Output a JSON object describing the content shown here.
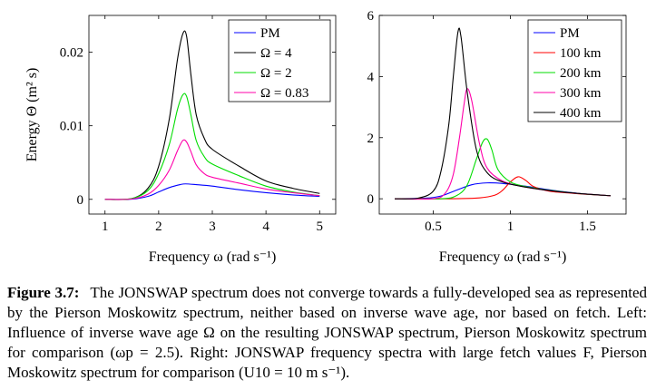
{
  "chart_data": [
    {
      "type": "line",
      "xlabel": "Frequency ω (rad s⁻¹)",
      "ylabel": "Energy Θ (m² s)",
      "xlim": [
        0.7,
        5.3
      ],
      "ylim": [
        -0.002,
        0.025
      ],
      "xticks": [
        1,
        2,
        3,
        4,
        5
      ],
      "yticks": [
        0,
        0.01,
        0.02
      ],
      "ytick_labels": [
        "0",
        "0.01",
        "0.02"
      ],
      "grid": false,
      "legend_position": "top-right",
      "series": [
        {
          "name": "PM",
          "color": "#0000ff",
          "x": [
            1.0,
            1.5,
            1.8,
            2.0,
            2.2,
            2.4,
            2.5,
            2.7,
            3.0,
            3.5,
            4.0,
            4.5,
            5.0
          ],
          "y": [
            0.0,
            2e-05,
            0.0004,
            0.001,
            0.0016,
            0.002,
            0.0021,
            0.002,
            0.0018,
            0.0013,
            0.0009,
            0.0006,
            0.0004
          ]
        },
        {
          "name": "Ω = 4",
          "color": "#000000",
          "x": [
            1.0,
            1.5,
            1.8,
            2.0,
            2.2,
            2.35,
            2.45,
            2.52,
            2.6,
            2.7,
            2.85,
            3.0,
            3.5,
            4.0,
            4.5,
            5.0
          ],
          "y": [
            0.0,
            0.0001,
            0.0015,
            0.0045,
            0.011,
            0.019,
            0.0225,
            0.0222,
            0.017,
            0.0115,
            0.0083,
            0.0068,
            0.0045,
            0.0025,
            0.0015,
            0.0008
          ]
        },
        {
          "name": "Ω = 2",
          "color": "#00dd00",
          "x": [
            1.0,
            1.5,
            1.8,
            2.0,
            2.2,
            2.35,
            2.45,
            2.52,
            2.6,
            2.7,
            2.85,
            3.0,
            3.5,
            4.0,
            4.5,
            5.0
          ],
          "y": [
            0.0,
            0.0001,
            0.0012,
            0.0035,
            0.0075,
            0.0122,
            0.0142,
            0.014,
            0.0115,
            0.008,
            0.0058,
            0.0048,
            0.0032,
            0.0018,
            0.001,
            0.0005
          ]
        },
        {
          "name": "Ω = 0.83",
          "color": "#ff00aa",
          "x": [
            1.0,
            1.5,
            1.8,
            2.0,
            2.2,
            2.35,
            2.45,
            2.52,
            2.6,
            2.7,
            2.85,
            3.0,
            3.5,
            4.0,
            4.5,
            5.0
          ],
          "y": [
            0.0,
            5e-05,
            0.0007,
            0.0019,
            0.004,
            0.0066,
            0.008,
            0.0078,
            0.0065,
            0.0047,
            0.0035,
            0.003,
            0.0022,
            0.0014,
            0.0009,
            0.0005
          ]
        }
      ]
    },
    {
      "type": "line",
      "xlabel": "Frequency ω (rad s⁻¹)",
      "ylabel": "",
      "xlim": [
        0.15,
        1.75
      ],
      "ylim": [
        -0.5,
        6
      ],
      "xticks": [
        0.5,
        1,
        1.5
      ],
      "yticks": [
        0,
        2,
        4,
        6
      ],
      "ytick_labels": [
        "0",
        "2",
        "4",
        "6"
      ],
      "grid": false,
      "legend_position": "top-right",
      "series": [
        {
          "name": "PM",
          "color": "#0000ff",
          "x": [
            0.25,
            0.45,
            0.55,
            0.65,
            0.75,
            0.85,
            0.95,
            1.1,
            1.3,
            1.5,
            1.65
          ],
          "y": [
            0.0,
            0.02,
            0.09,
            0.28,
            0.46,
            0.52,
            0.5,
            0.41,
            0.26,
            0.15,
            0.1
          ]
        },
        {
          "name": "100 km",
          "color": "#ff0000",
          "x": [
            0.25,
            0.6,
            0.8,
            0.9,
            0.95,
            1.0,
            1.05,
            1.1,
            1.15,
            1.25,
            1.4,
            1.55,
            1.65
          ],
          "y": [
            0.0,
            0.0,
            0.03,
            0.12,
            0.28,
            0.55,
            0.72,
            0.6,
            0.4,
            0.25,
            0.18,
            0.13,
            0.1
          ]
        },
        {
          "name": "200 km",
          "color": "#00dd00",
          "x": [
            0.25,
            0.55,
            0.65,
            0.72,
            0.78,
            0.82,
            0.85,
            0.88,
            0.92,
            1.0,
            1.1,
            1.25,
            1.45,
            1.65
          ],
          "y": [
            0.0,
            0.0,
            0.1,
            0.45,
            1.3,
            1.85,
            1.95,
            1.6,
            0.95,
            0.55,
            0.4,
            0.28,
            0.17,
            0.1
          ]
        },
        {
          "name": "300 km",
          "color": "#ff00aa",
          "x": [
            0.25,
            0.5,
            0.58,
            0.63,
            0.67,
            0.7,
            0.72,
            0.75,
            0.8,
            0.85,
            0.95,
            1.1,
            1.3,
            1.5,
            1.65
          ],
          "y": [
            0.0,
            0.0,
            0.2,
            0.8,
            2.0,
            3.1,
            3.6,
            3.2,
            1.8,
            1.0,
            0.58,
            0.38,
            0.24,
            0.15,
            0.1
          ]
        },
        {
          "name": "400 km",
          "color": "#000000",
          "x": [
            0.25,
            0.4,
            0.5,
            0.55,
            0.6,
            0.63,
            0.66,
            0.68,
            0.72,
            0.78,
            0.85,
            0.95,
            1.1,
            1.3,
            1.5,
            1.65
          ],
          "y": [
            0.0,
            0.02,
            0.25,
            0.9,
            2.4,
            4.0,
            5.45,
            5.3,
            3.5,
            1.6,
            0.85,
            0.55,
            0.38,
            0.24,
            0.15,
            0.1
          ]
        }
      ]
    }
  ],
  "caption": {
    "label": "Figure 3.7:",
    "text": "The JONSWAP spectrum does not converge towards a fully-developed sea as represented by the Pierson Moskowitz spectrum, neither based on inverse wave age, nor based on fetch. Left: Influence of inverse wave age Ω on the resulting JONSWAP spectrum, Pierson Moskowitz spectrum for comparison (ωp = 2.5). Right: JONSWAP frequency spectra with large fetch values F, Pierson Moskowitz spectrum for comparison (U10 = 10 m s⁻¹)."
  }
}
